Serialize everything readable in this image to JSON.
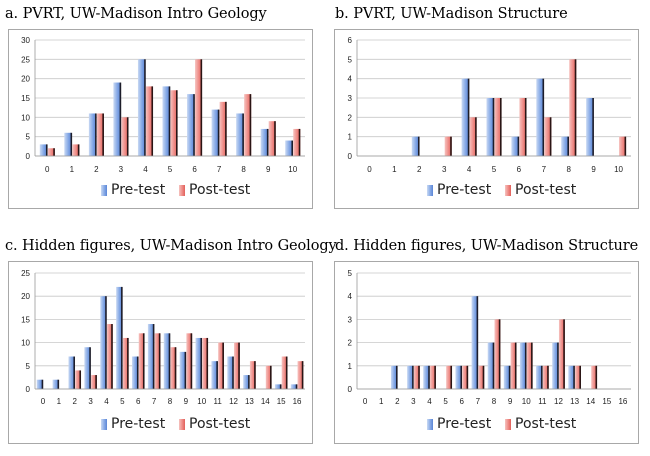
{
  "chart_data": [
    {
      "type": "bar",
      "title": "a. PVRT, UW-Madison Intro Geology",
      "categories": [
        "0",
        "1",
        "2",
        "3",
        "4",
        "5",
        "6",
        "7",
        "8",
        "9",
        "10"
      ],
      "ylim": [
        0,
        30
      ],
      "yticks": [
        "0",
        "5",
        "10",
        "15",
        "20",
        "25",
        "30"
      ],
      "series": [
        {
          "name": "Pre-test",
          "values": [
            3,
            6,
            11,
            19,
            25,
            18,
            16,
            12,
            11,
            7,
            4
          ]
        },
        {
          "name": "Post-test",
          "values": [
            2,
            3,
            11,
            10,
            18,
            17,
            25,
            14,
            16,
            9,
            7
          ]
        }
      ],
      "legend": [
        "Pre-test",
        "Post-test"
      ]
    },
    {
      "type": "bar",
      "title": "b. PVRT, UW-Madison Structure",
      "categories": [
        "0",
        "1",
        "2",
        "3",
        "4",
        "5",
        "6",
        "7",
        "8",
        "9",
        "10"
      ],
      "ylim": [
        0,
        6
      ],
      "yticks": [
        "0",
        "1",
        "2",
        "3",
        "4",
        "5",
        "6"
      ],
      "series": [
        {
          "name": "Pre-test",
          "values": [
            0,
            0,
            1,
            0,
            4,
            3,
            1,
            4,
            1,
            3,
            0
          ]
        },
        {
          "name": "Post-test",
          "values": [
            0,
            0,
            0,
            1,
            2,
            3,
            3,
            2,
            5,
            0,
            1
          ]
        }
      ],
      "legend": [
        "Pre-test",
        "Post-test"
      ]
    },
    {
      "type": "bar",
      "title": "c. Hidden figures, UW-Madison Intro Geology",
      "categories": [
        "0",
        "1",
        "2",
        "3",
        "4",
        "5",
        "6",
        "7",
        "8",
        "9",
        "10",
        "11",
        "12",
        "13",
        "14",
        "15",
        "16"
      ],
      "ylim": [
        0,
        25
      ],
      "yticks": [
        "0",
        "5",
        "10",
        "15",
        "20",
        "25"
      ],
      "series": [
        {
          "name": "Pre-test",
          "values": [
            2,
            2,
            7,
            9,
            20,
            22,
            7,
            14,
            12,
            8,
            11,
            6,
            7,
            3,
            0,
            1,
            1
          ]
        },
        {
          "name": "Post-test",
          "values": [
            0,
            0,
            4,
            3,
            14,
            11,
            12,
            12,
            9,
            12,
            11,
            10,
            10,
            6,
            5,
            7,
            6
          ]
        }
      ],
      "legend": [
        "Pre-test",
        "Post-test"
      ]
    },
    {
      "type": "bar",
      "title": "d. Hidden figures, UW-Madison Structure",
      "categories": [
        "0",
        "1",
        "2",
        "3",
        "4",
        "5",
        "6",
        "7",
        "8",
        "9",
        "10",
        "11",
        "12",
        "13",
        "14",
        "15",
        "16"
      ],
      "ylim": [
        0,
        5
      ],
      "yticks": [
        "0",
        "1",
        "2",
        "3",
        "4",
        "5"
      ],
      "series": [
        {
          "name": "Pre-test",
          "values": [
            0,
            0,
            1,
            1,
            1,
            0,
            1,
            4,
            2,
            1,
            2,
            1,
            2,
            1,
            0,
            0,
            0
          ]
        },
        {
          "name": "Post-test",
          "values": [
            0,
            0,
            0,
            1,
            1,
            1,
            1,
            1,
            3,
            2,
            2,
            1,
            3,
            1,
            1,
            0,
            0
          ]
        }
      ],
      "legend": [
        "Pre-test",
        "Post-test"
      ]
    }
  ]
}
